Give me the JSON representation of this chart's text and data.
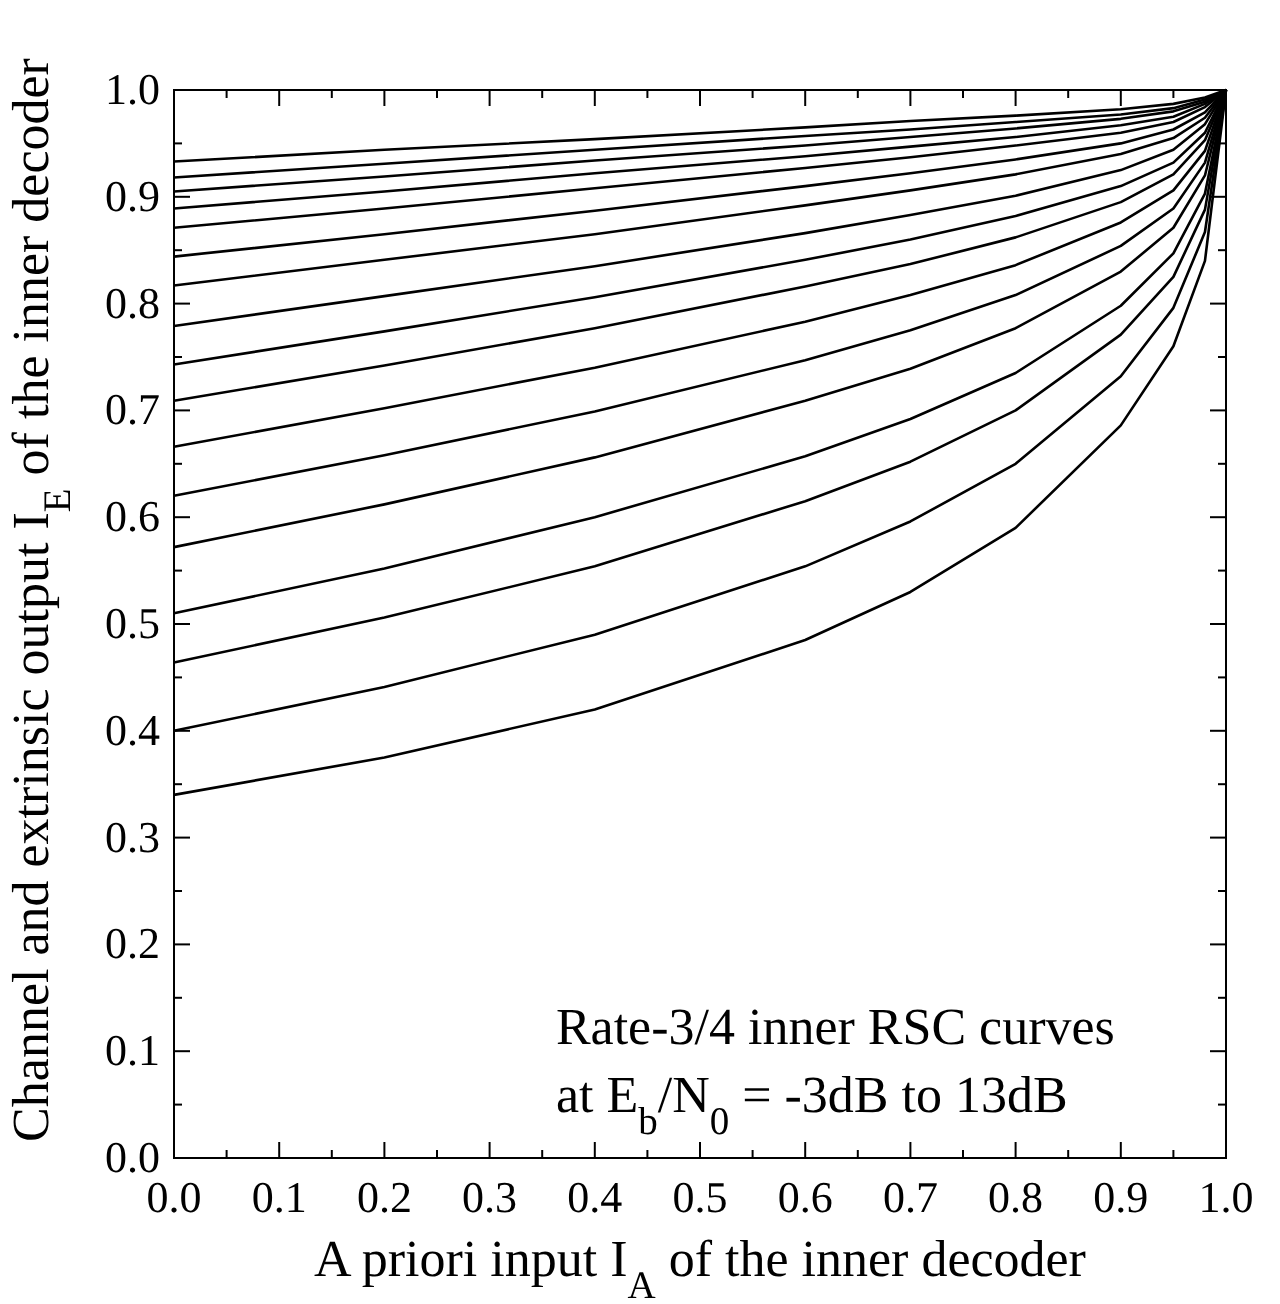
{
  "chart_data": {
    "type": "line",
    "xlabel": "A priori input I$_{A}$ of the inner decoder",
    "ylabel": "Channel and extrinsic output I$_{E}$ of the inner decoder",
    "annotations": [
      "Rate-3/4 inner RSC curves",
      "at E$_{b}$/N$_{0}$ = -3dB to 13dB"
    ],
    "x": [
      0,
      0.2,
      0.4,
      0.6,
      0.7,
      0.8,
      0.9,
      0.95,
      0.98,
      1
    ],
    "xlim": [
      0,
      1
    ],
    "ylim": [
      0,
      1
    ],
    "xticks": [
      {
        "value": 0,
        "label": "0.0"
      },
      {
        "value": 0.05,
        "label": null
      },
      {
        "value": 0.1,
        "label": "0.1"
      },
      {
        "value": 0.15,
        "label": null
      },
      {
        "value": 0.2,
        "label": "0.2"
      },
      {
        "value": 0.25,
        "label": null
      },
      {
        "value": 0.3,
        "label": "0.3"
      },
      {
        "value": 0.35,
        "label": null
      },
      {
        "value": 0.4,
        "label": "0.4"
      },
      {
        "value": 0.45,
        "label": null
      },
      {
        "value": 0.5,
        "label": "0.5"
      },
      {
        "value": 0.55,
        "label": null
      },
      {
        "value": 0.6,
        "label": "0.6"
      },
      {
        "value": 0.65,
        "label": null
      },
      {
        "value": 0.7,
        "label": "0.7"
      },
      {
        "value": 0.75,
        "label": null
      },
      {
        "value": 0.8,
        "label": "0.8"
      },
      {
        "value": 0.85,
        "label": null
      },
      {
        "value": 0.9,
        "label": "0.9"
      },
      {
        "value": 0.95,
        "label": null
      },
      {
        "value": 1,
        "label": "1.0"
      }
    ],
    "yticks": [
      {
        "value": 0,
        "label": "0.0"
      },
      {
        "value": 0.05,
        "label": null
      },
      {
        "value": 0.1,
        "label": "0.1"
      },
      {
        "value": 0.15,
        "label": null
      },
      {
        "value": 0.2,
        "label": "0.2"
      },
      {
        "value": 0.25,
        "label": null
      },
      {
        "value": 0.3,
        "label": "0.3"
      },
      {
        "value": 0.35,
        "label": null
      },
      {
        "value": 0.4,
        "label": "0.4"
      },
      {
        "value": 0.45,
        "label": null
      },
      {
        "value": 0.5,
        "label": "0.5"
      },
      {
        "value": 0.55,
        "label": null
      },
      {
        "value": 0.6,
        "label": "0.6"
      },
      {
        "value": 0.65,
        "label": null
      },
      {
        "value": 0.7,
        "label": "0.7"
      },
      {
        "value": 0.75,
        "label": null
      },
      {
        "value": 0.8,
        "label": "0.8"
      },
      {
        "value": 0.85,
        "label": null
      },
      {
        "value": 0.9,
        "label": "0.9"
      },
      {
        "value": 0.95,
        "label": null
      },
      {
        "value": 1,
        "label": "1.0"
      }
    ],
    "grid": false,
    "marker": "none",
    "line_style": "solid",
    "series": [
      {
        "color": "#000000",
        "values": [
          0.34,
          0.375,
          0.42,
          0.485,
          0.53,
          0.59,
          0.686,
          0.76,
          0.84,
          1
        ]
      },
      {
        "color": "#000000",
        "values": [
          0.4,
          0.441,
          0.49,
          0.554,
          0.596,
          0.65,
          0.732,
          0.796,
          0.867,
          1
        ]
      },
      {
        "color": "#000000",
        "values": [
          0.464,
          0.506,
          0.554,
          0.615,
          0.652,
          0.7,
          0.771,
          0.825,
          0.888,
          1
        ]
      },
      {
        "color": "#000000",
        "values": [
          0.51,
          0.552,
          0.6,
          0.657,
          0.692,
          0.735,
          0.798,
          0.847,
          0.903,
          1
        ]
      },
      {
        "color": "#000000",
        "values": [
          0.572,
          0.612,
          0.656,
          0.709,
          0.739,
          0.777,
          0.83,
          0.871,
          0.92,
          1
        ]
      },
      {
        "color": "#000000",
        "values": [
          0.62,
          0.658,
          0.699,
          0.747,
          0.775,
          0.808,
          0.854,
          0.889,
          0.932,
          1
        ]
      },
      {
        "color": "#000000",
        "values": [
          0.666,
          0.702,
          0.74,
          0.783,
          0.808,
          0.836,
          0.876,
          0.906,
          0.943,
          1
        ]
      },
      {
        "color": "#000000",
        "values": [
          0.709,
          0.742,
          0.777,
          0.816,
          0.837,
          0.862,
          0.895,
          0.921,
          0.953,
          1
        ]
      },
      {
        "color": "#000000",
        "values": [
          0.743,
          0.774,
          0.806,
          0.841,
          0.86,
          0.882,
          0.91,
          0.932,
          0.96,
          1
        ]
      },
      {
        "color": "#000000",
        "values": [
          0.779,
          0.807,
          0.835,
          0.866,
          0.883,
          0.901,
          0.925,
          0.944,
          0.968,
          1
        ]
      },
      {
        "color": "#000000",
        "values": [
          0.817,
          0.841,
          0.865,
          0.892,
          0.906,
          0.921,
          0.94,
          0.955,
          0.974,
          1
        ]
      },
      {
        "color": "#000000",
        "values": [
          0.844,
          0.865,
          0.887,
          0.91,
          0.922,
          0.935,
          0.95,
          0.963,
          0.979,
          1
        ]
      },
      {
        "color": "#000000",
        "values": [
          0.871,
          0.889,
          0.908,
          0.927,
          0.937,
          0.948,
          0.96,
          0.97,
          0.984,
          1
        ]
      },
      {
        "color": "#000000",
        "values": [
          0.889,
          0.905,
          0.922,
          0.938,
          0.947,
          0.956,
          0.967,
          0.975,
          0.987,
          1
        ]
      },
      {
        "color": "#000000",
        "values": [
          0.905,
          0.919,
          0.934,
          0.948,
          0.956,
          0.964,
          0.973,
          0.98,
          0.989,
          1
        ]
      },
      {
        "color": "#000000",
        "values": [
          0.918,
          0.931,
          0.944,
          0.957,
          0.963,
          0.97,
          0.977,
          0.983,
          0.991,
          1
        ]
      },
      {
        "color": "#000000",
        "values": [
          0.933,
          0.944,
          0.954,
          0.965,
          0.971,
          0.976,
          0.982,
          0.987,
          0.993,
          1
        ]
      }
    ]
  }
}
